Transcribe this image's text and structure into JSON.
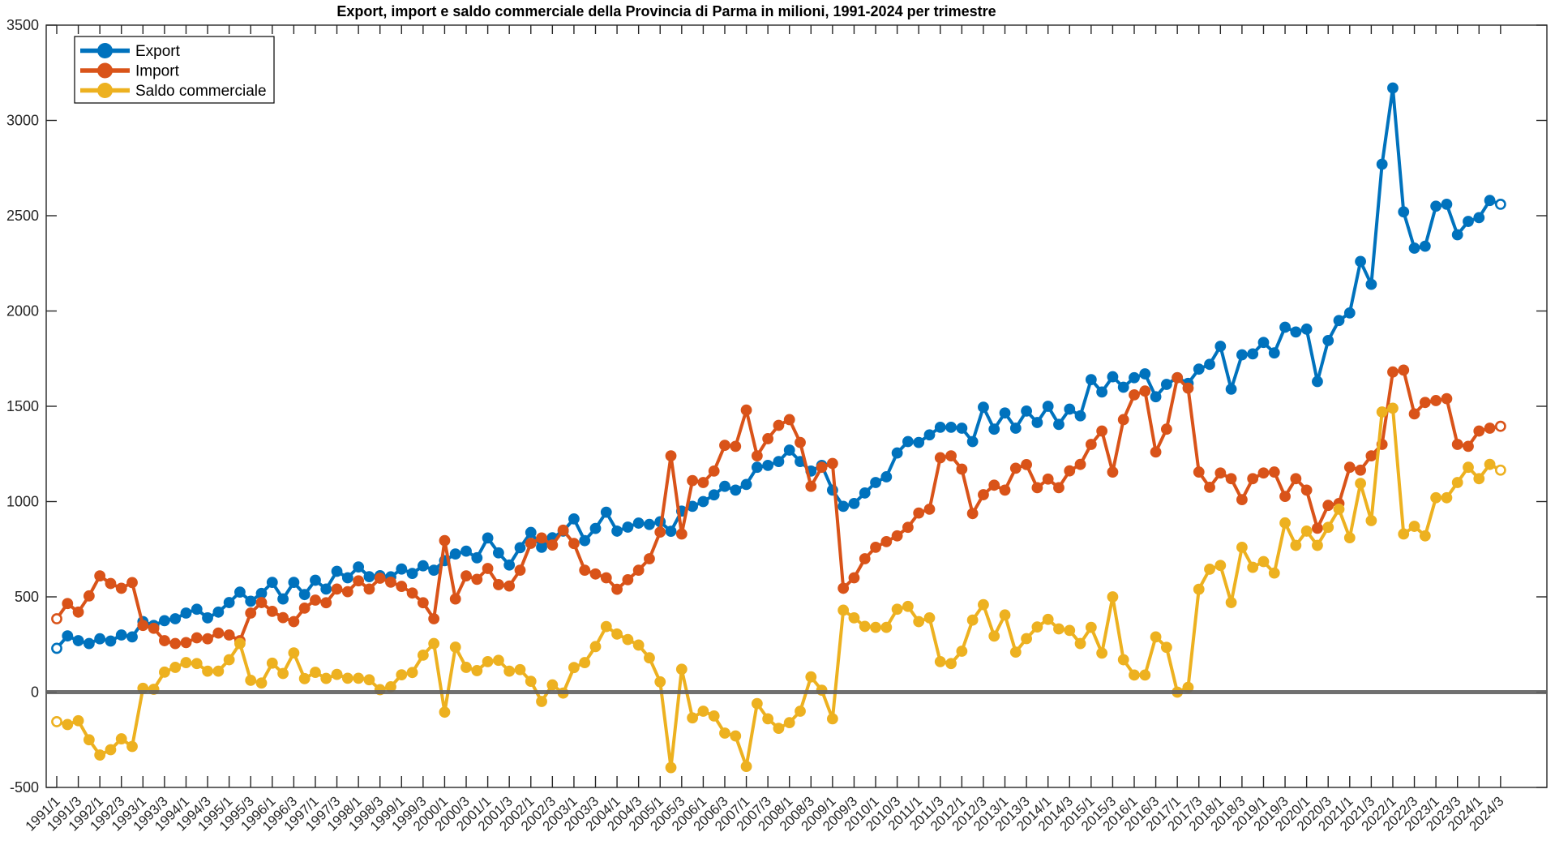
{
  "title": "Export, import e saldo commerciale della Provincia di Parma in milioni, 1991-2024 per trimestre",
  "chart_data": {
    "type": "line",
    "title": "Export, import e saldo commerciale della Provincia di Parma in milioni, 1991-2024 per trimestre",
    "xlabel": "",
    "ylabel": "",
    "frequency": "quarterly",
    "x_start": "1991/1",
    "x_end": "2024/3",
    "ylim": [
      -500,
      3500
    ],
    "grid": false,
    "legend_position": "top-left",
    "zero_line": {
      "value": 0,
      "color": "#606060"
    },
    "y_ticks": [
      -500,
      0,
      500,
      1000,
      1500,
      2000,
      2500,
      3000,
      3500
    ],
    "x_tick_labels": [
      "1991/1",
      "1991/3",
      "1992/1",
      "1992/3",
      "1993/1",
      "1993/3",
      "1994/1",
      "1994/3",
      "1995/1",
      "1995/3",
      "1996/1",
      "1996/3",
      "1997/1",
      "1997/3",
      "1998/1",
      "1998/3",
      "1999/1",
      "1999/3",
      "2000/1",
      "2000/3",
      "2001/1",
      "2001/3",
      "2002/1",
      "2002/3",
      "2003/1",
      "2003/3",
      "2004/1",
      "2004/3",
      "2005/1",
      "2005/3",
      "2006/1",
      "2006/3",
      "2007/1",
      "2007/3",
      "2008/1",
      "2008/3",
      "2009/1",
      "2009/3",
      "2010/1",
      "2010/3",
      "2011/1",
      "2011/3",
      "2012/1",
      "2012/3",
      "2013/1",
      "2013/3",
      "2014/1",
      "2014/3",
      "2015/1",
      "2015/3",
      "2016/1",
      "2016/3",
      "2017/1",
      "2017/3",
      "2018/1",
      "2018/3",
      "2019/1",
      "2019/3",
      "2020/1",
      "2020/3",
      "2021/1",
      "2021/3",
      "2022/1",
      "2022/3",
      "2023/1",
      "2023/3",
      "2024/1",
      "2024/3"
    ],
    "series": [
      {
        "name": "Export",
        "color": "#0072BD",
        "values": [
          230,
          295,
          270,
          255,
          280,
          268,
          300,
          290,
          370,
          350,
          375,
          385,
          415,
          435,
          390,
          420,
          470,
          525,
          477,
          518,
          576,
          489,
          576,
          512,
          587,
          541,
          634,
          600,
          657,
          606,
          611,
          605,
          646,
          623,
          663,
          640,
          690,
          725,
          740,
          705,
          809,
          731,
          667,
          758,
          838,
          760,
          810,
          845,
          909,
          795,
          859,
          944,
          845,
          866,
          887,
          880,
          894,
          844,
          950,
          975,
          1000,
          1035,
          1080,
          1060,
          1090,
          1180,
          1190,
          1210,
          1270,
          1210,
          1160,
          1190,
          1060,
          975,
          990,
          1045,
          1100,
          1130,
          1255,
          1315,
          1310,
          1350,
          1390,
          1390,
          1385,
          1315,
          1495,
          1380,
          1465,
          1385,
          1475,
          1415,
          1500,
          1405,
          1485,
          1450,
          1640,
          1575,
          1655,
          1600,
          1650,
          1670,
          1550,
          1615,
          1650,
          1620,
          1695,
          1720,
          1815,
          1590,
          1770,
          1775,
          1835,
          1780,
          1915,
          1890,
          1905,
          1630,
          1845,
          1950,
          1990,
          2260,
          2140,
          2770,
          3170,
          2520,
          2330,
          2340,
          2550,
          2560,
          2400,
          2470,
          2490,
          2580,
          2560
        ]
      },
      {
        "name": "Import",
        "color": "#D95319",
        "values": [
          385,
          465,
          420,
          505,
          610,
          570,
          545,
          575,
          350,
          335,
          270,
          255,
          260,
          285,
          280,
          310,
          300,
          270,
          415,
          470,
          424,
          391,
          370,
          441,
          483,
          469,
          541,
          527,
          584,
          541,
          598,
          577,
          555,
          520,
          469,
          385,
          795,
          489,
          610,
          592,
          649,
          564,
          557,
          640,
          781,
          809,
          772,
          850,
          780,
          640,
          620,
          600,
          540,
          590,
          640,
          700,
          840,
          1240,
          830,
          1110,
          1100,
          1160,
          1295,
          1290,
          1480,
          1240,
          1330,
          1400,
          1430,
          1310,
          1080,
          1180,
          1200,
          545,
          600,
          700,
          760,
          790,
          820,
          865,
          940,
          960,
          1230,
          1240,
          1170,
          937,
          1036,
          1086,
          1060,
          1175,
          1194,
          1073,
          1118,
          1073,
          1161,
          1195,
          1300,
          1370,
          1155,
          1430,
          1560,
          1580,
          1260,
          1380,
          1650,
          1595,
          1155,
          1075,
          1150,
          1120,
          1010,
          1120,
          1150,
          1155,
          1027,
          1120,
          1060,
          860,
          980,
          990,
          1180,
          1165,
          1240,
          1300,
          1680,
          1690,
          1460,
          1520,
          1530,
          1540,
          1300,
          1290,
          1370,
          1385,
          1395
        ]
      },
      {
        "name": "Saldo commerciale",
        "color": "#EDB120",
        "values": [
          -155,
          -170,
          -150,
          -250,
          -330,
          -302,
          -245,
          -285,
          20,
          15,
          105,
          130,
          155,
          150,
          110,
          110,
          170,
          255,
          62,
          48,
          152,
          98,
          206,
          71,
          104,
          72,
          93,
          73,
          73,
          65,
          13,
          28,
          91,
          103,
          194,
          255,
          -105,
          236,
          130,
          113,
          160,
          167,
          110,
          118,
          57,
          -49,
          38,
          -5,
          129,
          155,
          239,
          344,
          305,
          276,
          247,
          180,
          54,
          -396,
          120,
          -135,
          -100,
          -125,
          -215,
          -230,
          -390,
          -60,
          -140,
          -190,
          -160,
          -100,
          80,
          10,
          -140,
          430,
          390,
          345,
          340,
          340,
          435,
          450,
          370,
          390,
          160,
          150,
          215,
          378,
          459,
          294,
          405,
          210,
          281,
          342,
          382,
          332,
          324,
          255,
          340,
          205,
          500,
          170,
          90,
          90,
          290,
          235,
          0,
          25,
          540,
          645,
          665,
          470,
          760,
          655,
          685,
          625,
          888,
          770,
          845,
          770,
          865,
          960,
          810,
          1095,
          900,
          1470,
          1490,
          830,
          870,
          820,
          1020,
          1020,
          1100,
          1180,
          1120,
          1195,
          1165
        ]
      }
    ]
  }
}
